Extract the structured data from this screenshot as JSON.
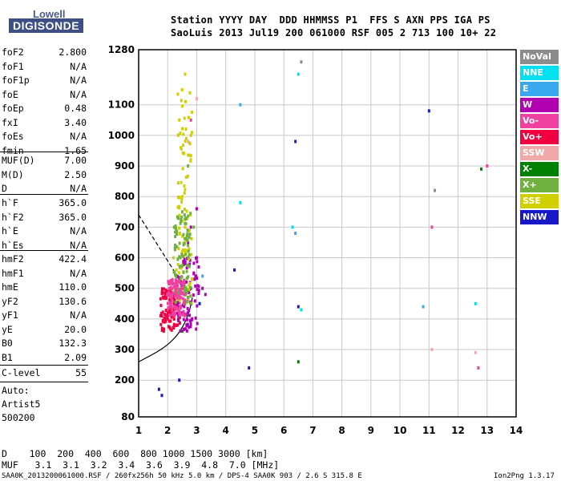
{
  "logo": {
    "line1": "Lowell",
    "line2": "DIGISONDE"
  },
  "header": {
    "row1": "Station YYYY DAY  DDD HHMMSS P1  FFS S AXN PPS IGA PS",
    "row2": "SaoLuis 2013 Jul19 200 061000 RSF 005 2 713 100 10+ 22"
  },
  "params": {
    "group1": [
      {
        "k": "foF2",
        "v": "2.800"
      },
      {
        "k": "foF1",
        "v": "N/A"
      },
      {
        "k": "foF1p",
        "v": "N/A"
      },
      {
        "k": "foE",
        "v": "N/A"
      },
      {
        "k": "foEp",
        "v": "0.48"
      },
      {
        "k": "fxI",
        "v": "3.40"
      },
      {
        "k": "foEs",
        "v": "N/A"
      },
      {
        "k": "fmin",
        "v": "1.65"
      }
    ],
    "group2": [
      {
        "k": "MUF(D)",
        "v": "7.00"
      },
      {
        "k": "M(D)",
        "v": "2.50"
      },
      {
        "k": "D",
        "v": "N/A"
      }
    ],
    "group3": [
      {
        "k": "h`F",
        "v": "365.0"
      },
      {
        "k": "h`F2",
        "v": "365.0"
      },
      {
        "k": "h`E",
        "v": "N/A"
      },
      {
        "k": "h`Es",
        "v": "N/A"
      }
    ],
    "group4": [
      {
        "k": "hmF2",
        "v": "422.4"
      },
      {
        "k": "hmF1",
        "v": "N/A"
      },
      {
        "k": "hmE",
        "v": "110.0"
      },
      {
        "k": "yF2",
        "v": "130.6"
      },
      {
        "k": "yF1",
        "v": "N/A"
      },
      {
        "k": "yE",
        "v": "20.0"
      },
      {
        "k": "B0",
        "v": "132.3"
      },
      {
        "k": "B1",
        "v": "2.09"
      }
    ],
    "clevel": {
      "k": "C-level",
      "v": "55"
    },
    "auto": [
      "Auto:",
      "Artist5",
      "500200"
    ]
  },
  "bottom": {
    "d_row": "D    100  200  400  600  800 1000 1500 3000 [km]",
    "muf_row": "MUF   3.1  3.1  3.2  3.4  3.6  3.9  4.8  7.0 [MHz]",
    "footer_left": "SAA0K_2013200061000.RSF / 260fx256h 50 kHz 5.0 km / DPS-4 SAA0K 903 / 2.6 S 315.8 E",
    "footer_right": "Ion2Png 1.3.17"
  },
  "legend": [
    {
      "label": "NoVal",
      "color": "#8c8c8c"
    },
    {
      "label": "NNE",
      "color": "#00e0f0"
    },
    {
      "label": "E",
      "color": "#3aa8f0"
    },
    {
      "label": "W",
      "color": "#b000b0"
    },
    {
      "label": "Vo-",
      "color": "#f040a0"
    },
    {
      "label": "Vo+",
      "color": "#f00040"
    },
    {
      "label": "SSW",
      "color": "#f0a8a8"
    },
    {
      "label": "X-",
      "color": "#008000"
    },
    {
      "label": "X+",
      "color": "#70b040"
    },
    {
      "label": "SSE",
      "color": "#d0d000"
    },
    {
      "label": "NNW",
      "color": "#1818c8"
    }
  ],
  "chart_data": {
    "type": "scatter",
    "x_ticks": [
      "1",
      "2",
      "3",
      "4",
      "5",
      "6",
      "7",
      "8",
      "9",
      "10",
      "11",
      "12",
      "13",
      "14"
    ],
    "y_ticks": [
      "80",
      "200",
      "300",
      "400",
      "500",
      "600",
      "700",
      "800",
      "900",
      "1000",
      "1100",
      "1280"
    ],
    "xlim": [
      1,
      14
    ],
    "ylim": [
      80,
      1280
    ],
    "grid": true,
    "legend_position": "right",
    "series": [
      {
        "name": "Vo+",
        "color": "#f00040",
        "points": [
          [
            1.9,
            390
          ],
          [
            2.0,
            420
          ],
          [
            2.1,
            450
          ],
          [
            2.2,
            470
          ],
          [
            2.3,
            440
          ],
          [
            2.4,
            480
          ],
          [
            2.5,
            500
          ],
          [
            2.6,
            520
          ],
          [
            2.2,
            410
          ],
          [
            2.0,
            400
          ]
        ]
      },
      {
        "name": "W",
        "color": "#b000b0",
        "points": [
          [
            2.6,
            450
          ],
          [
            2.8,
            500
          ],
          [
            2.9,
            550
          ],
          [
            3.0,
            600
          ],
          [
            3.2,
            500
          ],
          [
            3.3,
            480
          ],
          [
            2.7,
            650
          ],
          [
            2.8,
            700
          ],
          [
            3.0,
            760
          ],
          [
            2.5,
            420
          ]
        ]
      },
      {
        "name": "SSE",
        "color": "#d0d000",
        "points": [
          [
            2.3,
            560
          ],
          [
            2.5,
            620
          ],
          [
            2.6,
            700
          ],
          [
            2.7,
            900
          ],
          [
            2.8,
            1000
          ],
          [
            2.4,
            1050
          ],
          [
            2.6,
            1200
          ],
          [
            2.5,
            800
          ],
          [
            2.2,
            600
          ]
        ]
      },
      {
        "name": "X+",
        "color": "#70b040",
        "points": [
          [
            2.4,
            520
          ],
          [
            2.6,
            580
          ],
          [
            2.7,
            640
          ],
          [
            2.9,
            700
          ],
          [
            2.5,
            750
          ],
          [
            2.7,
            900
          ]
        ]
      },
      {
        "name": "NNW",
        "color": "#1818c8",
        "points": [
          [
            1.8,
            150
          ],
          [
            2.4,
            200
          ],
          [
            3.1,
            450
          ],
          [
            4.3,
            560
          ],
          [
            4.8,
            240
          ],
          [
            6.4,
            980
          ],
          [
            6.5,
            440
          ],
          [
            11.0,
            1080
          ],
          [
            1.7,
            170
          ]
        ]
      },
      {
        "name": "NNE",
        "color": "#00e0f0",
        "points": [
          [
            4.5,
            780
          ],
          [
            6.3,
            700
          ],
          [
            6.5,
            1200
          ],
          [
            6.6,
            430
          ],
          [
            12.6,
            450
          ]
        ]
      },
      {
        "name": "E",
        "color": "#3aa8f0",
        "points": [
          [
            3.2,
            540
          ],
          [
            4.5,
            1100
          ],
          [
            6.4,
            680
          ],
          [
            10.8,
            440
          ]
        ]
      },
      {
        "name": "Vo-",
        "color": "#f040a0",
        "points": [
          [
            2.2,
            430
          ],
          [
            2.8,
            1050
          ],
          [
            11.1,
            700
          ],
          [
            12.7,
            240
          ],
          [
            13.0,
            900
          ]
        ]
      },
      {
        "name": "SSW",
        "color": "#f0a8a8",
        "points": [
          [
            2.7,
            980
          ],
          [
            3.0,
            1120
          ],
          [
            11.1,
            300
          ],
          [
            12.6,
            290
          ]
        ]
      },
      {
        "name": "X-",
        "color": "#008000",
        "points": [
          [
            2.5,
            360
          ],
          [
            6.5,
            260
          ],
          [
            12.8,
            890
          ]
        ]
      },
      {
        "name": "NoVal",
        "color": "#8c8c8c",
        "points": [
          [
            6.6,
            1240
          ],
          [
            11.2,
            820
          ]
        ]
      }
    ]
  }
}
